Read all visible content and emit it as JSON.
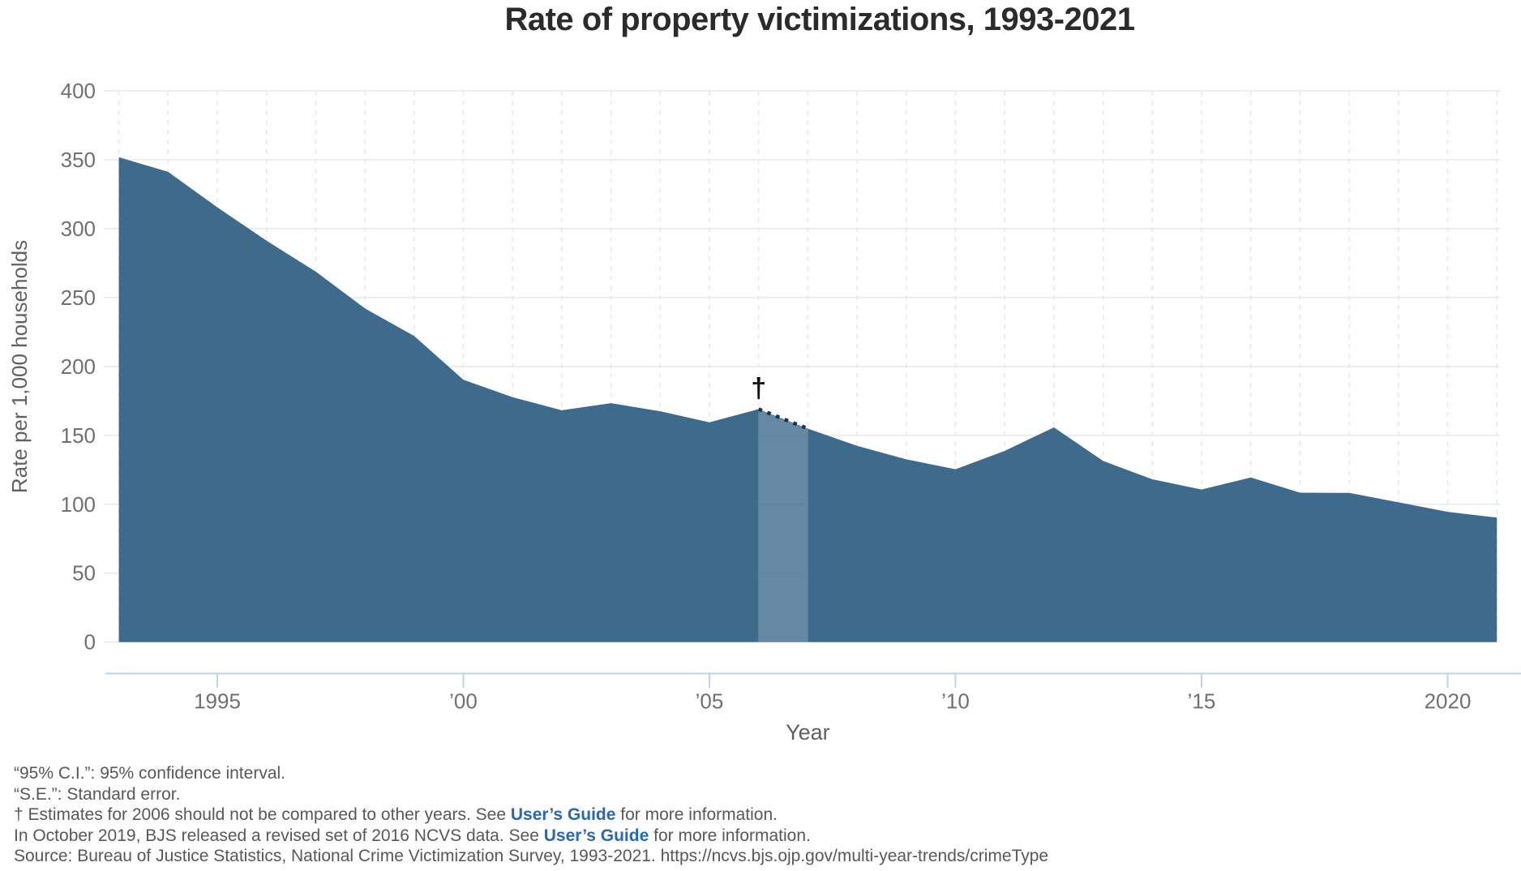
{
  "title": "Rate of property victimizations, 1993-2021",
  "colors": {
    "area": "#3E6A8C",
    "band_rgba": "rgba(62,106,140,0.8)",
    "dotted_edge": "#16344C",
    "dagger": "#111111",
    "grid": "#E8E8E8",
    "axis_line": "#C2D2E6",
    "tick_text": "#707070",
    "axis_title_text": "#616161",
    "title_text": "#2B2B2B",
    "footnote_text": "#55585C",
    "link": "#2868B4"
  },
  "chart_data": {
    "type": "area",
    "title": "Rate of property victimizations, 1993-2021",
    "xlabel": "Year",
    "ylabel": "Rate per 1,000 households",
    "x": [
      1993,
      1994,
      1995,
      1996,
      1997,
      1998,
      1999,
      2000,
      2001,
      2002,
      2003,
      2004,
      2005,
      2006,
      2007,
      2008,
      2009,
      2010,
      2011,
      2012,
      2013,
      2014,
      2015,
      2016,
      2017,
      2018,
      2019,
      2020,
      2021
    ],
    "values": [
      351.8,
      341.2,
      315.5,
      291.3,
      268.8,
      242.1,
      222.1,
      190.4,
      177.7,
      168.2,
      173.4,
      167.5,
      159.5,
      169.0,
      154.9,
      142.4,
      132.6,
      125.4,
      138.7,
      155.8,
      131.4,
      118.1,
      110.7,
      119.4,
      108.4,
      108.2,
      101.4,
      94.5,
      90.3
    ],
    "ylim": [
      0,
      400
    ],
    "y_ticks": [
      0,
      50,
      100,
      150,
      200,
      250,
      300,
      350,
      400
    ],
    "x_tick_labels": [
      {
        "year": 1995,
        "label": "1995"
      },
      {
        "year": 2000,
        "label": "’00"
      },
      {
        "year": 2005,
        "label": "’05"
      },
      {
        "year": 2010,
        "label": "’10"
      },
      {
        "year": 2015,
        "label": "’15"
      },
      {
        "year": 2020,
        "label": "2020"
      }
    ],
    "grid": true,
    "legend_position": "none",
    "highlight": {
      "start_year": 2006,
      "end_year": 2007,
      "marker": "†",
      "marker_year": 2006,
      "style": "lighter semi-transparent band with dotted top edge"
    }
  },
  "footnotes": {
    "lines": [
      [
        {
          "t": "“95% C.I.”: 95% confidence interval."
        }
      ],
      [
        {
          "t": "“S.E.”: Standard error."
        }
      ],
      [
        {
          "t": "† Estimates for 2006 should not be compared to other years. See "
        },
        {
          "t": "User’s Guide",
          "link": true
        },
        {
          "t": " for more information."
        }
      ],
      [
        {
          "t": "In October 2019, BJS released a revised set of 2016 NCVS data. See "
        },
        {
          "t": "User’s Guide",
          "link": true
        },
        {
          "t": " for more information."
        }
      ],
      [
        {
          "t": "Source: Bureau of Justice Statistics, National Crime Victimization Survey, 1993-2021. https://ncvs.bjs.ojp.gov/multi-year-trends/crimeType"
        }
      ]
    ]
  }
}
